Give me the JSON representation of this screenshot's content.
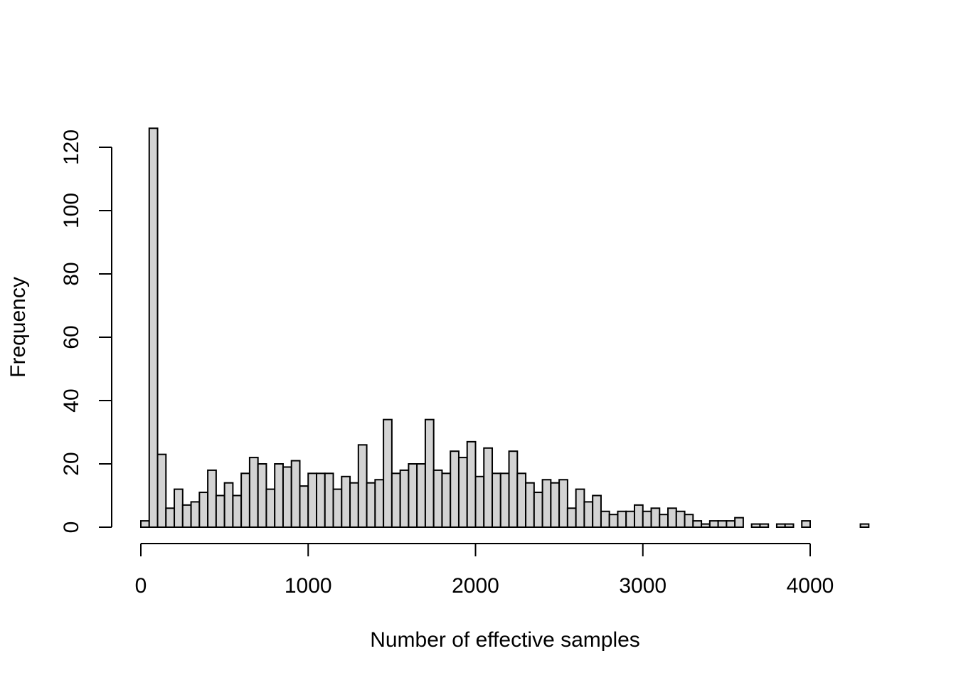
{
  "chart_data": {
    "type": "bar",
    "histogram": true,
    "xlabel": "Number of effective samples",
    "ylabel": "Frequency",
    "title": "",
    "bin_width": 50,
    "bin_start": 0,
    "values": [
      2,
      126,
      23,
      6,
      12,
      7,
      8,
      11,
      18,
      10,
      14,
      10,
      17,
      22,
      20,
      12,
      20,
      19,
      21,
      13,
      17,
      17,
      17,
      12,
      16,
      14,
      26,
      14,
      15,
      34,
      17,
      18,
      20,
      20,
      34,
      18,
      17,
      24,
      22,
      27,
      16,
      25,
      17,
      17,
      24,
      17,
      14,
      11,
      15,
      14,
      15,
      6,
      12,
      8,
      10,
      5,
      4,
      5,
      5,
      7,
      5,
      6,
      4,
      6,
      5,
      4,
      2,
      1,
      2,
      2,
      2,
      3,
      0,
      1,
      1,
      0,
      1,
      1,
      0,
      2,
      0,
      0,
      0,
      0,
      0,
      0,
      1
    ],
    "xlim": [
      0,
      4350
    ],
    "ylim": [
      0,
      126
    ],
    "x_ticks": [
      0,
      1000,
      2000,
      3000,
      4000
    ],
    "y_ticks": [
      0,
      20,
      40,
      60,
      80,
      100,
      120
    ],
    "x_tick_labels": [
      "0",
      "1000",
      "2000",
      "3000",
      "4000"
    ],
    "y_tick_labels": [
      "0",
      "20",
      "40",
      "60",
      "80",
      "100",
      "120"
    ],
    "bar_fill": "#d3d3d3",
    "bar_stroke": "#000000",
    "grid": false,
    "legend": "none"
  }
}
